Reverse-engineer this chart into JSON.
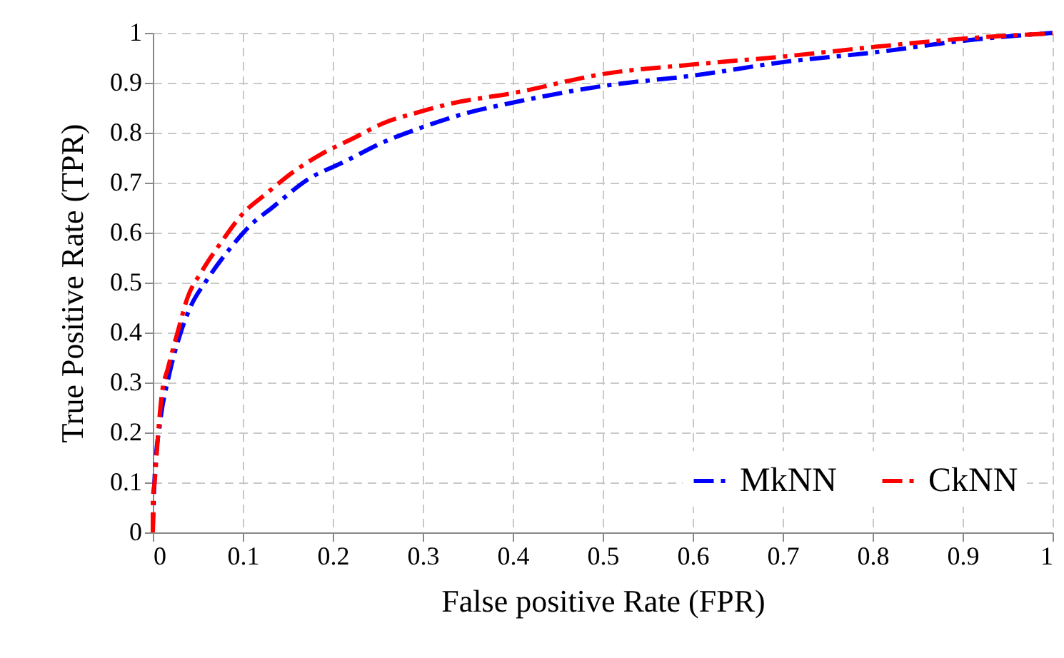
{
  "chart_data": {
    "type": "line",
    "xlabel": "False positive Rate (FPR)",
    "ylabel": "True Positive Rate (TPR)",
    "xlim": [
      0,
      1
    ],
    "ylim": [
      0,
      1
    ],
    "xticks": [
      0,
      0.1,
      0.2,
      0.3,
      0.4,
      0.5,
      0.6,
      0.7,
      0.8,
      0.9,
      1
    ],
    "yticks": [
      0,
      0.1,
      0.2,
      0.3,
      0.4,
      0.5,
      0.6,
      0.7,
      0.8,
      0.9,
      1
    ],
    "grid": true,
    "legend": "bottom right",
    "line_style": "dashed",
    "marker": "none",
    "series": [
      {
        "name": "MkNN",
        "color": "#0000ff",
        "x": [
          0,
          0.002,
          0.008,
          0.018,
          0.031,
          0.042,
          0.06,
          0.087,
          0.108,
          0.134,
          0.171,
          0.214,
          0.256,
          0.298,
          0.346,
          0.402,
          0.502,
          0.603,
          0.703,
          0.803,
          0.905,
          1
        ],
        "values": [
          0,
          0.11,
          0.219,
          0.314,
          0.4,
          0.452,
          0.505,
          0.571,
          0.614,
          0.652,
          0.705,
          0.743,
          0.781,
          0.81,
          0.838,
          0.861,
          0.894,
          0.915,
          0.942,
          0.961,
          0.985,
          1
        ]
      },
      {
        "name": "CkNN",
        "color": "#ff0000",
        "x": [
          0,
          0,
          0.002,
          0.006,
          0.01,
          0.017,
          0.029,
          0.038,
          0.055,
          0.075,
          0.1,
          0.126,
          0.158,
          0.187,
          0.224,
          0.256,
          0.293,
          0.328,
          0.402,
          0.502,
          0.603,
          0.703,
          0.803,
          0.905,
          1
        ],
        "values": [
          0,
          0.067,
          0.1,
          0.2,
          0.276,
          0.33,
          0.41,
          0.467,
          0.524,
          0.578,
          0.638,
          0.678,
          0.724,
          0.757,
          0.79,
          0.819,
          0.84,
          0.857,
          0.88,
          0.918,
          0.937,
          0.953,
          0.972,
          0.989,
          0.999
        ]
      }
    ]
  }
}
